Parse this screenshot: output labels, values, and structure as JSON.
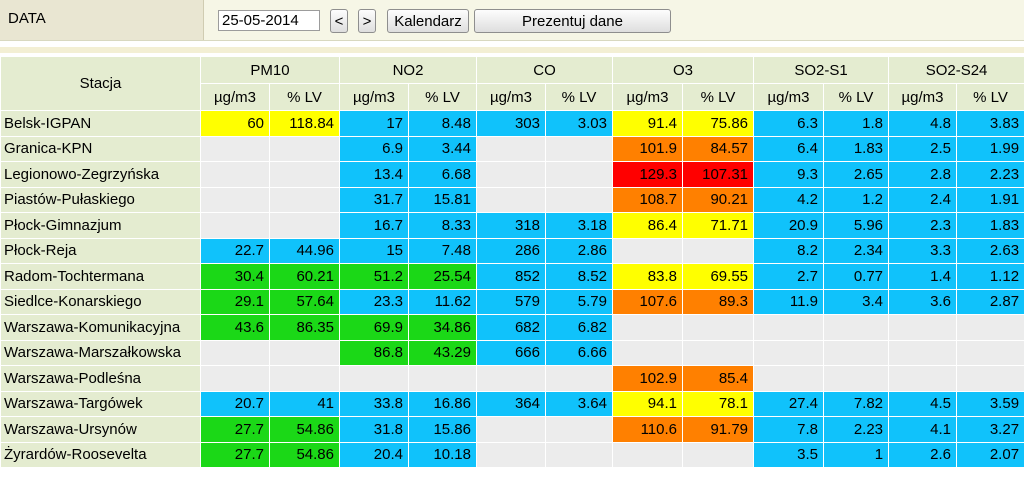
{
  "header": {
    "date_label": "DATA",
    "date_value": "25-05-2014",
    "prev_label": "<",
    "next_label": ">",
    "calendar_label": "Kalendarz",
    "show_label": "Prezentuj dane"
  },
  "table": {
    "station_header": "Stacja",
    "pollutants": [
      "PM10",
      "NO2",
      "CO",
      "O3",
      "SO2-S1",
      "SO2-S24"
    ],
    "unit_headers": [
      "µg/m3",
      "% LV"
    ],
    "status_colors": {
      "blue": "#10c2fb",
      "yellow": "#ffff00",
      "green": "#1bd817",
      "orange": "#ff8000",
      "red": "#ff0000",
      "empty": "#ececec"
    },
    "rows": [
      {
        "station": "Belsk-IGPAN",
        "cells": [
          {
            "v": "60",
            "c": "yellow"
          },
          {
            "v": "118.84",
            "c": "yellow"
          },
          {
            "v": "17",
            "c": "blue"
          },
          {
            "v": "8.48",
            "c": "blue"
          },
          {
            "v": "303",
            "c": "blue"
          },
          {
            "v": "3.03",
            "c": "blue"
          },
          {
            "v": "91.4",
            "c": "yellow"
          },
          {
            "v": "75.86",
            "c": "yellow"
          },
          {
            "v": "6.3",
            "c": "blue"
          },
          {
            "v": "1.8",
            "c": "blue"
          },
          {
            "v": "4.8",
            "c": "blue"
          },
          {
            "v": "3.83",
            "c": "blue"
          }
        ]
      },
      {
        "station": "Granica-KPN",
        "cells": [
          {
            "v": "",
            "c": "empty"
          },
          {
            "v": "",
            "c": "empty"
          },
          {
            "v": "6.9",
            "c": "blue"
          },
          {
            "v": "3.44",
            "c": "blue"
          },
          {
            "v": "",
            "c": "empty"
          },
          {
            "v": "",
            "c": "empty"
          },
          {
            "v": "101.9",
            "c": "orange"
          },
          {
            "v": "84.57",
            "c": "orange"
          },
          {
            "v": "6.4",
            "c": "blue"
          },
          {
            "v": "1.83",
            "c": "blue"
          },
          {
            "v": "2.5",
            "c": "blue"
          },
          {
            "v": "1.99",
            "c": "blue"
          }
        ]
      },
      {
        "station": "Legionowo-Zegrzyńska",
        "cells": [
          {
            "v": "",
            "c": "empty"
          },
          {
            "v": "",
            "c": "empty"
          },
          {
            "v": "13.4",
            "c": "blue"
          },
          {
            "v": "6.68",
            "c": "blue"
          },
          {
            "v": "",
            "c": "empty"
          },
          {
            "v": "",
            "c": "empty"
          },
          {
            "v": "129.3",
            "c": "red"
          },
          {
            "v": "107.31",
            "c": "red"
          },
          {
            "v": "9.3",
            "c": "blue"
          },
          {
            "v": "2.65",
            "c": "blue"
          },
          {
            "v": "2.8",
            "c": "blue"
          },
          {
            "v": "2.23",
            "c": "blue"
          }
        ]
      },
      {
        "station": "Piastów-Pułaskiego",
        "cells": [
          {
            "v": "",
            "c": "empty"
          },
          {
            "v": "",
            "c": "empty"
          },
          {
            "v": "31.7",
            "c": "blue"
          },
          {
            "v": "15.81",
            "c": "blue"
          },
          {
            "v": "",
            "c": "empty"
          },
          {
            "v": "",
            "c": "empty"
          },
          {
            "v": "108.7",
            "c": "orange"
          },
          {
            "v": "90.21",
            "c": "orange"
          },
          {
            "v": "4.2",
            "c": "blue"
          },
          {
            "v": "1.2",
            "c": "blue"
          },
          {
            "v": "2.4",
            "c": "blue"
          },
          {
            "v": "1.91",
            "c": "blue"
          }
        ]
      },
      {
        "station": "Płock-Gimnazjum",
        "cells": [
          {
            "v": "",
            "c": "empty"
          },
          {
            "v": "",
            "c": "empty"
          },
          {
            "v": "16.7",
            "c": "blue"
          },
          {
            "v": "8.33",
            "c": "blue"
          },
          {
            "v": "318",
            "c": "blue"
          },
          {
            "v": "3.18",
            "c": "blue"
          },
          {
            "v": "86.4",
            "c": "yellow"
          },
          {
            "v": "71.71",
            "c": "yellow"
          },
          {
            "v": "20.9",
            "c": "blue"
          },
          {
            "v": "5.96",
            "c": "blue"
          },
          {
            "v": "2.3",
            "c": "blue"
          },
          {
            "v": "1.83",
            "c": "blue"
          }
        ]
      },
      {
        "station": "Płock-Reja",
        "cells": [
          {
            "v": "22.7",
            "c": "blue"
          },
          {
            "v": "44.96",
            "c": "blue"
          },
          {
            "v": "15",
            "c": "blue"
          },
          {
            "v": "7.48",
            "c": "blue"
          },
          {
            "v": "286",
            "c": "blue"
          },
          {
            "v": "2.86",
            "c": "blue"
          },
          {
            "v": "",
            "c": "empty"
          },
          {
            "v": "",
            "c": "empty"
          },
          {
            "v": "8.2",
            "c": "blue"
          },
          {
            "v": "2.34",
            "c": "blue"
          },
          {
            "v": "3.3",
            "c": "blue"
          },
          {
            "v": "2.63",
            "c": "blue"
          }
        ]
      },
      {
        "station": "Radom-Tochtermana",
        "cells": [
          {
            "v": "30.4",
            "c": "green"
          },
          {
            "v": "60.21",
            "c": "green"
          },
          {
            "v": "51.2",
            "c": "green"
          },
          {
            "v": "25.54",
            "c": "green"
          },
          {
            "v": "852",
            "c": "blue"
          },
          {
            "v": "8.52",
            "c": "blue"
          },
          {
            "v": "83.8",
            "c": "yellow"
          },
          {
            "v": "69.55",
            "c": "yellow"
          },
          {
            "v": "2.7",
            "c": "blue"
          },
          {
            "v": "0.77",
            "c": "blue"
          },
          {
            "v": "1.4",
            "c": "blue"
          },
          {
            "v": "1.12",
            "c": "blue"
          }
        ]
      },
      {
        "station": "Siedlce-Konarskiego",
        "cells": [
          {
            "v": "29.1",
            "c": "green"
          },
          {
            "v": "57.64",
            "c": "green"
          },
          {
            "v": "23.3",
            "c": "blue"
          },
          {
            "v": "11.62",
            "c": "blue"
          },
          {
            "v": "579",
            "c": "blue"
          },
          {
            "v": "5.79",
            "c": "blue"
          },
          {
            "v": "107.6",
            "c": "orange"
          },
          {
            "v": "89.3",
            "c": "orange"
          },
          {
            "v": "11.9",
            "c": "blue"
          },
          {
            "v": "3.4",
            "c": "blue"
          },
          {
            "v": "3.6",
            "c": "blue"
          },
          {
            "v": "2.87",
            "c": "blue"
          }
        ]
      },
      {
        "station": "Warszawa-Komunikacyjna",
        "cells": [
          {
            "v": "43.6",
            "c": "green"
          },
          {
            "v": "86.35",
            "c": "green"
          },
          {
            "v": "69.9",
            "c": "green"
          },
          {
            "v": "34.86",
            "c": "green"
          },
          {
            "v": "682",
            "c": "blue"
          },
          {
            "v": "6.82",
            "c": "blue"
          },
          {
            "v": "",
            "c": "empty"
          },
          {
            "v": "",
            "c": "empty"
          },
          {
            "v": "",
            "c": "empty"
          },
          {
            "v": "",
            "c": "empty"
          },
          {
            "v": "",
            "c": "empty"
          },
          {
            "v": "",
            "c": "empty"
          }
        ]
      },
      {
        "station": "Warszawa-Marszałkowska",
        "cells": [
          {
            "v": "",
            "c": "empty"
          },
          {
            "v": "",
            "c": "empty"
          },
          {
            "v": "86.8",
            "c": "green"
          },
          {
            "v": "43.29",
            "c": "green"
          },
          {
            "v": "666",
            "c": "blue"
          },
          {
            "v": "6.66",
            "c": "blue"
          },
          {
            "v": "",
            "c": "empty"
          },
          {
            "v": "",
            "c": "empty"
          },
          {
            "v": "",
            "c": "empty"
          },
          {
            "v": "",
            "c": "empty"
          },
          {
            "v": "",
            "c": "empty"
          },
          {
            "v": "",
            "c": "empty"
          }
        ]
      },
      {
        "station": "Warszawa-Podleśna",
        "cells": [
          {
            "v": "",
            "c": "empty"
          },
          {
            "v": "",
            "c": "empty"
          },
          {
            "v": "",
            "c": "empty"
          },
          {
            "v": "",
            "c": "empty"
          },
          {
            "v": "",
            "c": "empty"
          },
          {
            "v": "",
            "c": "empty"
          },
          {
            "v": "102.9",
            "c": "orange"
          },
          {
            "v": "85.4",
            "c": "orange"
          },
          {
            "v": "",
            "c": "empty"
          },
          {
            "v": "",
            "c": "empty"
          },
          {
            "v": "",
            "c": "empty"
          },
          {
            "v": "",
            "c": "empty"
          }
        ]
      },
      {
        "station": "Warszawa-Targówek",
        "cells": [
          {
            "v": "20.7",
            "c": "blue"
          },
          {
            "v": "41",
            "c": "blue"
          },
          {
            "v": "33.8",
            "c": "blue"
          },
          {
            "v": "16.86",
            "c": "blue"
          },
          {
            "v": "364",
            "c": "blue"
          },
          {
            "v": "3.64",
            "c": "blue"
          },
          {
            "v": "94.1",
            "c": "yellow"
          },
          {
            "v": "78.1",
            "c": "yellow"
          },
          {
            "v": "27.4",
            "c": "blue"
          },
          {
            "v": "7.82",
            "c": "blue"
          },
          {
            "v": "4.5",
            "c": "blue"
          },
          {
            "v": "3.59",
            "c": "blue"
          }
        ]
      },
      {
        "station": "Warszawa-Ursynów",
        "cells": [
          {
            "v": "27.7",
            "c": "green"
          },
          {
            "v": "54.86",
            "c": "green"
          },
          {
            "v": "31.8",
            "c": "blue"
          },
          {
            "v": "15.86",
            "c": "blue"
          },
          {
            "v": "",
            "c": "empty"
          },
          {
            "v": "",
            "c": "empty"
          },
          {
            "v": "110.6",
            "c": "orange"
          },
          {
            "v": "91.79",
            "c": "orange"
          },
          {
            "v": "7.8",
            "c": "blue"
          },
          {
            "v": "2.23",
            "c": "blue"
          },
          {
            "v": "4.1",
            "c": "blue"
          },
          {
            "v": "3.27",
            "c": "blue"
          }
        ]
      },
      {
        "station": "Żyrardów-Roosevelta",
        "cells": [
          {
            "v": "27.7",
            "c": "green"
          },
          {
            "v": "54.86",
            "c": "green"
          },
          {
            "v": "20.4",
            "c": "blue"
          },
          {
            "v": "10.18",
            "c": "blue"
          },
          {
            "v": "",
            "c": "empty"
          },
          {
            "v": "",
            "c": "empty"
          },
          {
            "v": "",
            "c": "empty"
          },
          {
            "v": "",
            "c": "empty"
          },
          {
            "v": "3.5",
            "c": "blue"
          },
          {
            "v": "1",
            "c": "blue"
          },
          {
            "v": "2.6",
            "c": "blue"
          },
          {
            "v": "2.07",
            "c": "blue"
          }
        ]
      }
    ]
  }
}
